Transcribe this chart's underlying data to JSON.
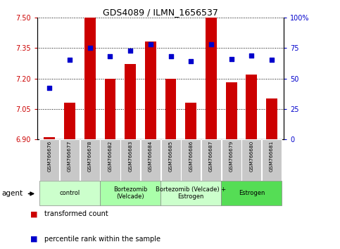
{
  "title": "GDS4089 / ILMN_1656537",
  "samples": [
    "GSM766676",
    "GSM766677",
    "GSM766678",
    "GSM766682",
    "GSM766683",
    "GSM766684",
    "GSM766685",
    "GSM766686",
    "GSM766687",
    "GSM766679",
    "GSM766680",
    "GSM766681"
  ],
  "transformed_count": [
    6.91,
    7.08,
    7.5,
    7.2,
    7.27,
    7.38,
    7.2,
    7.08,
    7.5,
    7.18,
    7.22,
    7.1
  ],
  "percentile_rank": [
    42,
    65,
    75,
    68,
    73,
    78,
    68,
    64,
    78,
    66,
    69,
    65
  ],
  "y_min": 6.9,
  "y_max": 7.5,
  "y_ticks": [
    6.9,
    7.05,
    7.2,
    7.35,
    7.5
  ],
  "y2_ticks": [
    0,
    25,
    50,
    75,
    100
  ],
  "bar_color": "#cc0000",
  "scatter_color": "#0000cc",
  "bar_bottom": 6.9,
  "groups": [
    {
      "label": "control",
      "start": 0,
      "end": 3,
      "color": "#ccffcc"
    },
    {
      "label": "Bortezomib\n(Velcade)",
      "start": 3,
      "end": 6,
      "color": "#aaffaa"
    },
    {
      "label": "Bortezomib (Velcade) +\nEstrogen",
      "start": 6,
      "end": 9,
      "color": "#ccffcc"
    },
    {
      "label": "Estrogen",
      "start": 9,
      "end": 12,
      "color": "#55dd55"
    }
  ],
  "legend_red": "transformed count",
  "legend_blue": "percentile rank within the sample",
  "agent_label": "agent",
  "bar_color_red": "#cc0000",
  "scatter_color_blue": "#0000cc",
  "y_tick_color": "#cc0000",
  "y2_tick_color": "#0000cc"
}
